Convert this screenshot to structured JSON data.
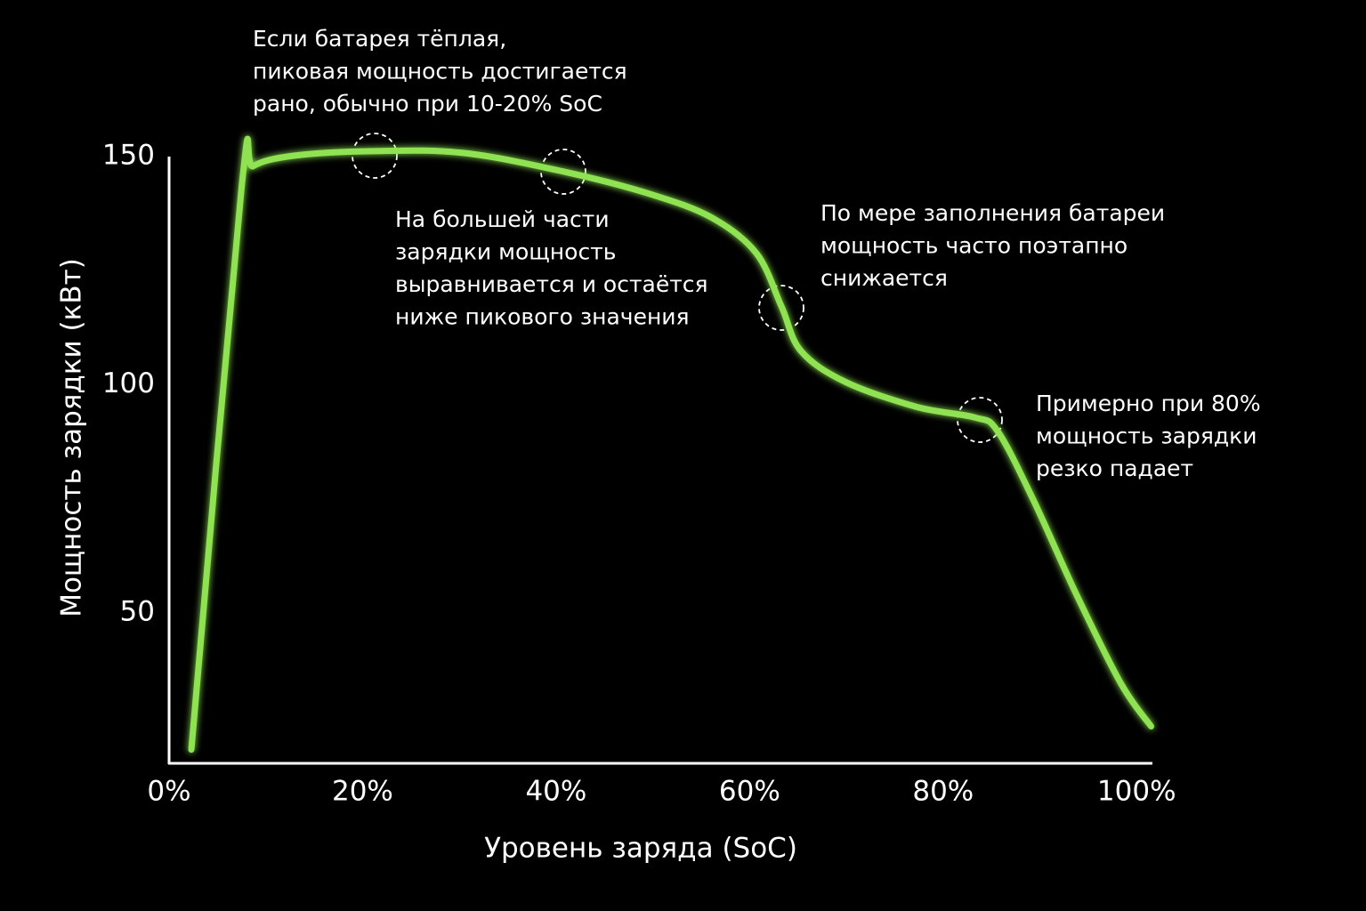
{
  "chart_data": {
    "type": "line",
    "x_label": "Уровень заряда (SoC)",
    "y_label": "Мощность зарядки (кВт)",
    "xlim": [
      0,
      102
    ],
    "ylim": [
      17,
      150
    ],
    "xticks": [
      {
        "value": 0,
        "label": "0%"
      },
      {
        "value": 20,
        "label": "20%"
      },
      {
        "value": 40,
        "label": "40%"
      },
      {
        "value": 60,
        "label": "60%"
      },
      {
        "value": 80,
        "label": "80%"
      },
      {
        "value": 100,
        "label": "100%"
      }
    ],
    "yticks": [
      50,
      100,
      150
    ],
    "grid": false,
    "series": [
      {
        "name": "Мощность зарядки",
        "color": "#8fe352",
        "x": [
          2.3,
          7.5,
          8.7,
          12.9,
          21.2,
          30.4,
          40.8,
          49.7,
          56.1,
          60.7,
          63.3,
          65.3,
          69.9,
          77.3,
          83.3,
          85.6,
          89.2,
          93.8,
          98.4,
          101.5
        ],
        "values": [
          20,
          143.4,
          147.9,
          150.2,
          151.2,
          150.8,
          146.7,
          141.8,
          136.6,
          128.8,
          117.1,
          107.4,
          100.6,
          95.1,
          92.8,
          89.9,
          75.3,
          53.9,
          34.4,
          25.1
        ]
      }
    ],
    "annotations": [
      {
        "lines": [
          "Если батарея тёплая,",
          "пиковая мощность достигается",
          "рано, обычно при 10-20% SoC"
        ]
      },
      {
        "lines": [
          "На большей части",
          "зарядки мощность",
          "выравнивается и остаётся",
          "ниже пикового значения"
        ]
      },
      {
        "lines": [
          "По мере заполнения батареи",
          "мощность часто поэтапно",
          "снижается"
        ]
      },
      {
        "lines": [
          "Примерно при 80%",
          "мощность зарядки",
          "резко падает"
        ]
      }
    ]
  }
}
